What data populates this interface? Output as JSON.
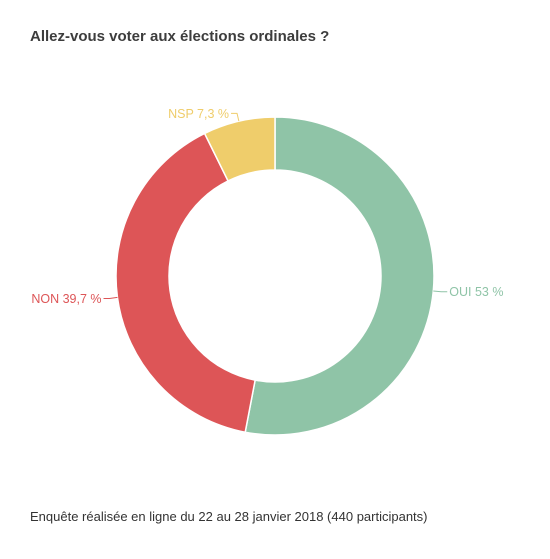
{
  "title": "Allez-vous voter aux élections ordinales ?",
  "footnote": "Enquête réalisée en ligne du 22 au 28 janvier 2018  (440 participants)",
  "chart_data": {
    "type": "pie",
    "donut": true,
    "slices": [
      {
        "category": "OUI",
        "value": 53,
        "label": "OUI 53 %",
        "color": "#8fc4a7"
      },
      {
        "category": "NON",
        "value": 39.7,
        "label": "NON 39,7 %",
        "color": "#dd5557"
      },
      {
        "category": "NSP",
        "value": 7.3,
        "label": "NSP 7,3 %",
        "color": "#efcd6b"
      }
    ]
  }
}
